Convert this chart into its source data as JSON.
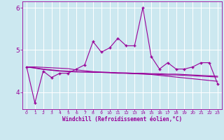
{
  "xlabel": "Windchill (Refroidissement éolien,°C)",
  "x_values": [
    0,
    1,
    2,
    3,
    4,
    5,
    6,
    7,
    8,
    9,
    10,
    11,
    12,
    13,
    14,
    15,
    16,
    17,
    18,
    19,
    20,
    21,
    22,
    23
  ],
  "line1_y": [
    4.6,
    3.75,
    4.5,
    4.35,
    4.45,
    4.45,
    4.55,
    4.65,
    5.2,
    4.95,
    5.05,
    5.28,
    5.1,
    5.1,
    6.0,
    4.85,
    4.55,
    4.7,
    4.55,
    4.55,
    4.6,
    4.7,
    4.7,
    4.2
  ],
  "line2_y": [
    4.6,
    4.58,
    4.55,
    4.53,
    4.51,
    4.5,
    4.49,
    4.48,
    4.47,
    4.47,
    4.46,
    4.45,
    4.45,
    4.44,
    4.44,
    4.43,
    4.42,
    4.41,
    4.41,
    4.4,
    4.39,
    4.38,
    4.37,
    4.36
  ],
  "line3_y": [
    4.6,
    4.57,
    4.54,
    4.52,
    4.5,
    4.49,
    4.48,
    4.48,
    4.48,
    4.47,
    4.47,
    4.46,
    4.46,
    4.45,
    4.45,
    4.44,
    4.44,
    4.43,
    4.43,
    4.42,
    4.41,
    4.4,
    4.39,
    4.38
  ],
  "line4_y": [
    4.6,
    4.6,
    4.59,
    4.58,
    4.57,
    4.56,
    4.53,
    4.51,
    4.49,
    4.48,
    4.47,
    4.46,
    4.45,
    4.44,
    4.43,
    4.42,
    4.4,
    4.38,
    4.36,
    4.34,
    4.32,
    4.3,
    4.28,
    4.26
  ],
  "line_color": "#990099",
  "bg_color": "#cce8f0",
  "grid_color": "#ffffff",
  "ylim": [
    3.6,
    6.15
  ],
  "yticks": [
    4,
    5,
    6
  ],
  "marker": "+"
}
